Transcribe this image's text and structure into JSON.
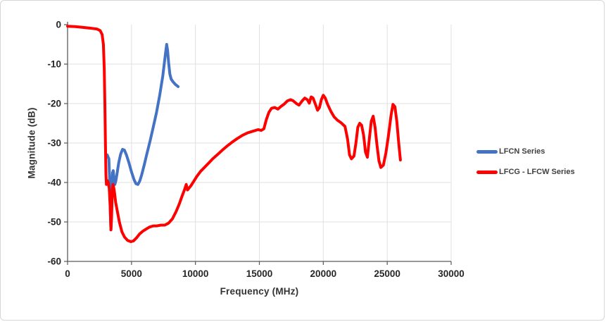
{
  "chart_data": {
    "type": "line",
    "title": "",
    "xlabel": "Frequency (MHz)",
    "ylabel": "Magnitude (dB)",
    "xlim": [
      0,
      30000
    ],
    "ylim": [
      -60,
      0
    ],
    "xticks": [
      0,
      5000,
      10000,
      15000,
      20000,
      25000,
      30000
    ],
    "yticks": [
      0,
      -10,
      -20,
      -30,
      -40,
      -50,
      -60
    ],
    "grid": true,
    "legend_position": "right",
    "colors": {
      "gridline": "#e0e0e0",
      "axis": "#595959",
      "tick_text": "#262626"
    },
    "series": [
      {
        "name": "LFCN Series",
        "color": "#4472C4",
        "points": [
          [
            3100,
            -33
          ],
          [
            3230,
            -34
          ],
          [
            3300,
            -40
          ],
          [
            3350,
            -48
          ],
          [
            3390,
            -52
          ],
          [
            3430,
            -49
          ],
          [
            3470,
            -41
          ],
          [
            3520,
            -37.5
          ],
          [
            3570,
            -37
          ],
          [
            3630,
            -39
          ],
          [
            3700,
            -40.5
          ],
          [
            3780,
            -39.5
          ],
          [
            3880,
            -37.5
          ],
          [
            4000,
            -35
          ],
          [
            4150,
            -32.8
          ],
          [
            4300,
            -31.6
          ],
          [
            4450,
            -31.8
          ],
          [
            4600,
            -33
          ],
          [
            4800,
            -35
          ],
          [
            5000,
            -37.3
          ],
          [
            5200,
            -39.3
          ],
          [
            5350,
            -40.3
          ],
          [
            5500,
            -40.5
          ],
          [
            5650,
            -39.6
          ],
          [
            5800,
            -38
          ],
          [
            6000,
            -35.5
          ],
          [
            6200,
            -32.8
          ],
          [
            6450,
            -29.5
          ],
          [
            6700,
            -26
          ],
          [
            6950,
            -22.3
          ],
          [
            7200,
            -18
          ],
          [
            7450,
            -13
          ],
          [
            7650,
            -7.5
          ],
          [
            7750,
            -5
          ],
          [
            7820,
            -6.5
          ],
          [
            7900,
            -9.5
          ],
          [
            8000,
            -12.5
          ],
          [
            8100,
            -13.8
          ],
          [
            8250,
            -14.5
          ],
          [
            8450,
            -15.2
          ],
          [
            8650,
            -15.7
          ]
        ]
      },
      {
        "name": "LFCG - LFCW Series",
        "color": "#FF0000",
        "points": [
          [
            0,
            -0.4
          ],
          [
            600,
            -0.5
          ],
          [
            1200,
            -0.7
          ],
          [
            1800,
            -0.9
          ],
          [
            2300,
            -1.1
          ],
          [
            2550,
            -1.5
          ],
          [
            2700,
            -2.5
          ],
          [
            2800,
            -5
          ],
          [
            2870,
            -11
          ],
          [
            2920,
            -20
          ],
          [
            2960,
            -30
          ],
          [
            3000,
            -38
          ],
          [
            3040,
            -40.5
          ],
          [
            3100,
            -39.5
          ],
          [
            3180,
            -40
          ],
          [
            3260,
            -41.5
          ],
          [
            3330,
            -46
          ],
          [
            3390,
            -52
          ],
          [
            3440,
            -49
          ],
          [
            3500,
            -42
          ],
          [
            3560,
            -40.5
          ],
          [
            3650,
            -42
          ],
          [
            3760,
            -45
          ],
          [
            3900,
            -47.5
          ],
          [
            4050,
            -50
          ],
          [
            4250,
            -52.5
          ],
          [
            4450,
            -53.8
          ],
          [
            4700,
            -54.7
          ],
          [
            4950,
            -55
          ],
          [
            5150,
            -54.8
          ],
          [
            5400,
            -54
          ],
          [
            5650,
            -53
          ],
          [
            5900,
            -52.3
          ],
          [
            6150,
            -51.8
          ],
          [
            6400,
            -51.3
          ],
          [
            6700,
            -51
          ],
          [
            7000,
            -51
          ],
          [
            7300,
            -50.8
          ],
          [
            7600,
            -50.8
          ],
          [
            7900,
            -50.3
          ],
          [
            8200,
            -49.2
          ],
          [
            8500,
            -47.3
          ],
          [
            8750,
            -45.3
          ],
          [
            8950,
            -43.5
          ],
          [
            9150,
            -41.8
          ],
          [
            9280,
            -40.5
          ],
          [
            9380,
            -41.9
          ],
          [
            9480,
            -41.5
          ],
          [
            9650,
            -40.8
          ],
          [
            9850,
            -39.8
          ],
          [
            10100,
            -38.5
          ],
          [
            10400,
            -37.2
          ],
          [
            10700,
            -36.2
          ],
          [
            11000,
            -35.2
          ],
          [
            11350,
            -34
          ],
          [
            11700,
            -33
          ],
          [
            12100,
            -31.8
          ],
          [
            12500,
            -30.7
          ],
          [
            12900,
            -29.7
          ],
          [
            13300,
            -28.8
          ],
          [
            13700,
            -28
          ],
          [
            14100,
            -27.4
          ],
          [
            14500,
            -27
          ],
          [
            14900,
            -26.6
          ],
          [
            15150,
            -26.8
          ],
          [
            15350,
            -26.4
          ],
          [
            15550,
            -24
          ],
          [
            15750,
            -22.2
          ],
          [
            15950,
            -21.2
          ],
          [
            16200,
            -21
          ],
          [
            16450,
            -21.4
          ],
          [
            16700,
            -20.7
          ],
          [
            16950,
            -20.1
          ],
          [
            17200,
            -19.3
          ],
          [
            17450,
            -19
          ],
          [
            17650,
            -19.3
          ],
          [
            17900,
            -20
          ],
          [
            18100,
            -20.4
          ],
          [
            18350,
            -19.3
          ],
          [
            18550,
            -18.6
          ],
          [
            18750,
            -19
          ],
          [
            18900,
            -19.9
          ],
          [
            19050,
            -18.3
          ],
          [
            19200,
            -18.6
          ],
          [
            19400,
            -20.3
          ],
          [
            19550,
            -21.7
          ],
          [
            19700,
            -21
          ],
          [
            19850,
            -19
          ],
          [
            20000,
            -17.9
          ],
          [
            20150,
            -18.6
          ],
          [
            20350,
            -20.3
          ],
          [
            20600,
            -22
          ],
          [
            20850,
            -23.4
          ],
          [
            21100,
            -24.2
          ],
          [
            21400,
            -24.9
          ],
          [
            21700,
            -25.8
          ],
          [
            21900,
            -29
          ],
          [
            22050,
            -33
          ],
          [
            22200,
            -34
          ],
          [
            22400,
            -33.3
          ],
          [
            22550,
            -30
          ],
          [
            22700,
            -26
          ],
          [
            22850,
            -25
          ],
          [
            23000,
            -25.5
          ],
          [
            23150,
            -28
          ],
          [
            23300,
            -32.3
          ],
          [
            23450,
            -33.6
          ],
          [
            23600,
            -29
          ],
          [
            23750,
            -24.5
          ],
          [
            23900,
            -23.2
          ],
          [
            24050,
            -26
          ],
          [
            24200,
            -30.5
          ],
          [
            24350,
            -34.5
          ],
          [
            24500,
            -36.2
          ],
          [
            24700,
            -35.6
          ],
          [
            24900,
            -32.5
          ],
          [
            25100,
            -28
          ],
          [
            25300,
            -23
          ],
          [
            25450,
            -20.2
          ],
          [
            25600,
            -20.8
          ],
          [
            25750,
            -24.5
          ],
          [
            25900,
            -30
          ],
          [
            26030,
            -34.3
          ]
        ]
      }
    ]
  }
}
